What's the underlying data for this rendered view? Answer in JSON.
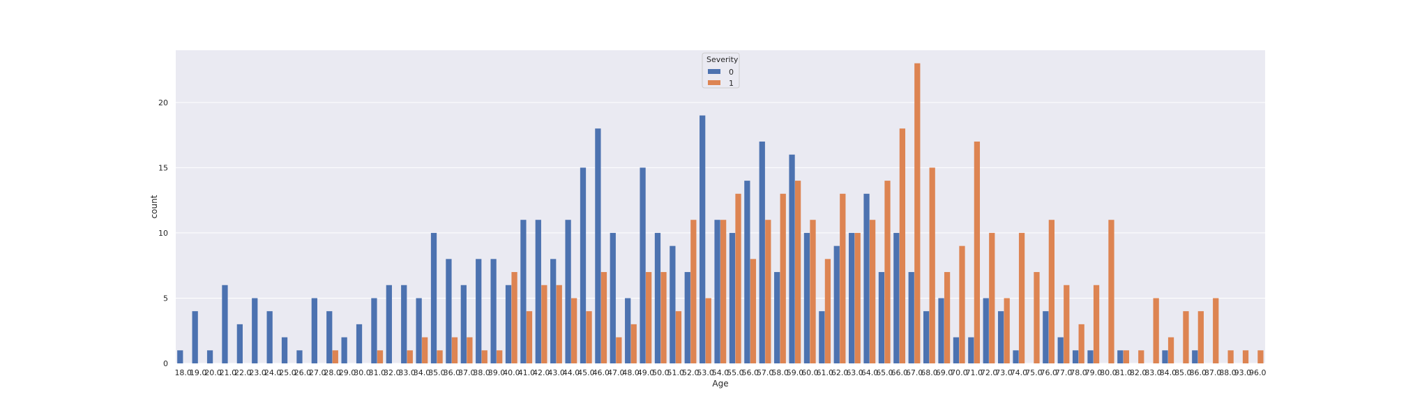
{
  "chart_data": {
    "type": "bar",
    "xlabel": "Age",
    "ylabel": "count",
    "ylim": [
      0,
      24
    ],
    "yticks": [
      0,
      5,
      10,
      15,
      20
    ],
    "grid": true,
    "legend_position": "top-center",
    "legend_title": "Severity",
    "categories": [
      "18.0",
      "19.0",
      "20.0",
      "21.0",
      "22.0",
      "23.0",
      "24.0",
      "25.0",
      "26.0",
      "27.0",
      "28.0",
      "29.0",
      "30.0",
      "31.0",
      "32.0",
      "33.0",
      "34.0",
      "35.0",
      "36.0",
      "37.0",
      "38.0",
      "39.0",
      "40.0",
      "41.0",
      "42.0",
      "43.0",
      "44.0",
      "45.0",
      "46.0",
      "47.0",
      "48.0",
      "49.0",
      "50.0",
      "51.0",
      "52.0",
      "53.0",
      "54.0",
      "55.0",
      "56.0",
      "57.0",
      "58.0",
      "59.0",
      "60.0",
      "61.0",
      "62.0",
      "63.0",
      "64.0",
      "65.0",
      "66.0",
      "67.0",
      "68.0",
      "69.0",
      "70.0",
      "71.0",
      "72.0",
      "73.0",
      "74.0",
      "75.0",
      "76.0",
      "77.0",
      "78.0",
      "79.0",
      "80.0",
      "81.0",
      "82.0",
      "83.0",
      "84.0",
      "85.0",
      "86.0",
      "87.0",
      "88.0",
      "93.0",
      "96.0"
    ],
    "series": [
      {
        "name": "0",
        "color": "#4c72b0",
        "values": [
          1,
          4,
          1,
          6,
          3,
          5,
          4,
          2,
          1,
          5,
          4,
          2,
          3,
          5,
          6,
          6,
          5,
          10,
          8,
          6,
          8,
          8,
          6,
          11,
          11,
          8,
          11,
          15,
          18,
          10,
          5,
          15,
          10,
          9,
          7,
          19,
          11,
          10,
          14,
          17,
          7,
          16,
          10,
          4,
          9,
          10,
          13,
          7,
          10,
          7,
          4,
          5,
          2,
          2,
          5,
          4,
          1,
          0,
          4,
          2,
          1,
          1,
          0,
          1,
          0,
          0,
          1,
          0,
          1,
          0,
          0,
          0,
          0
        ]
      },
      {
        "name": "1",
        "color": "#dd8452",
        "values": [
          0,
          0,
          0,
          0,
          0,
          0,
          0,
          0,
          0,
          0,
          1,
          0,
          0,
          1,
          0,
          1,
          2,
          1,
          2,
          2,
          1,
          1,
          7,
          4,
          6,
          6,
          5,
          4,
          7,
          2,
          3,
          7,
          7,
          4,
          11,
          5,
          11,
          13,
          8,
          11,
          13,
          14,
          11,
          8,
          13,
          10,
          11,
          14,
          18,
          23,
          15,
          7,
          9,
          17,
          10,
          5,
          10,
          7,
          11,
          6,
          3,
          6,
          11,
          1,
          1,
          5,
          2,
          4,
          4,
          5,
          1,
          1,
          1
        ]
      }
    ]
  }
}
